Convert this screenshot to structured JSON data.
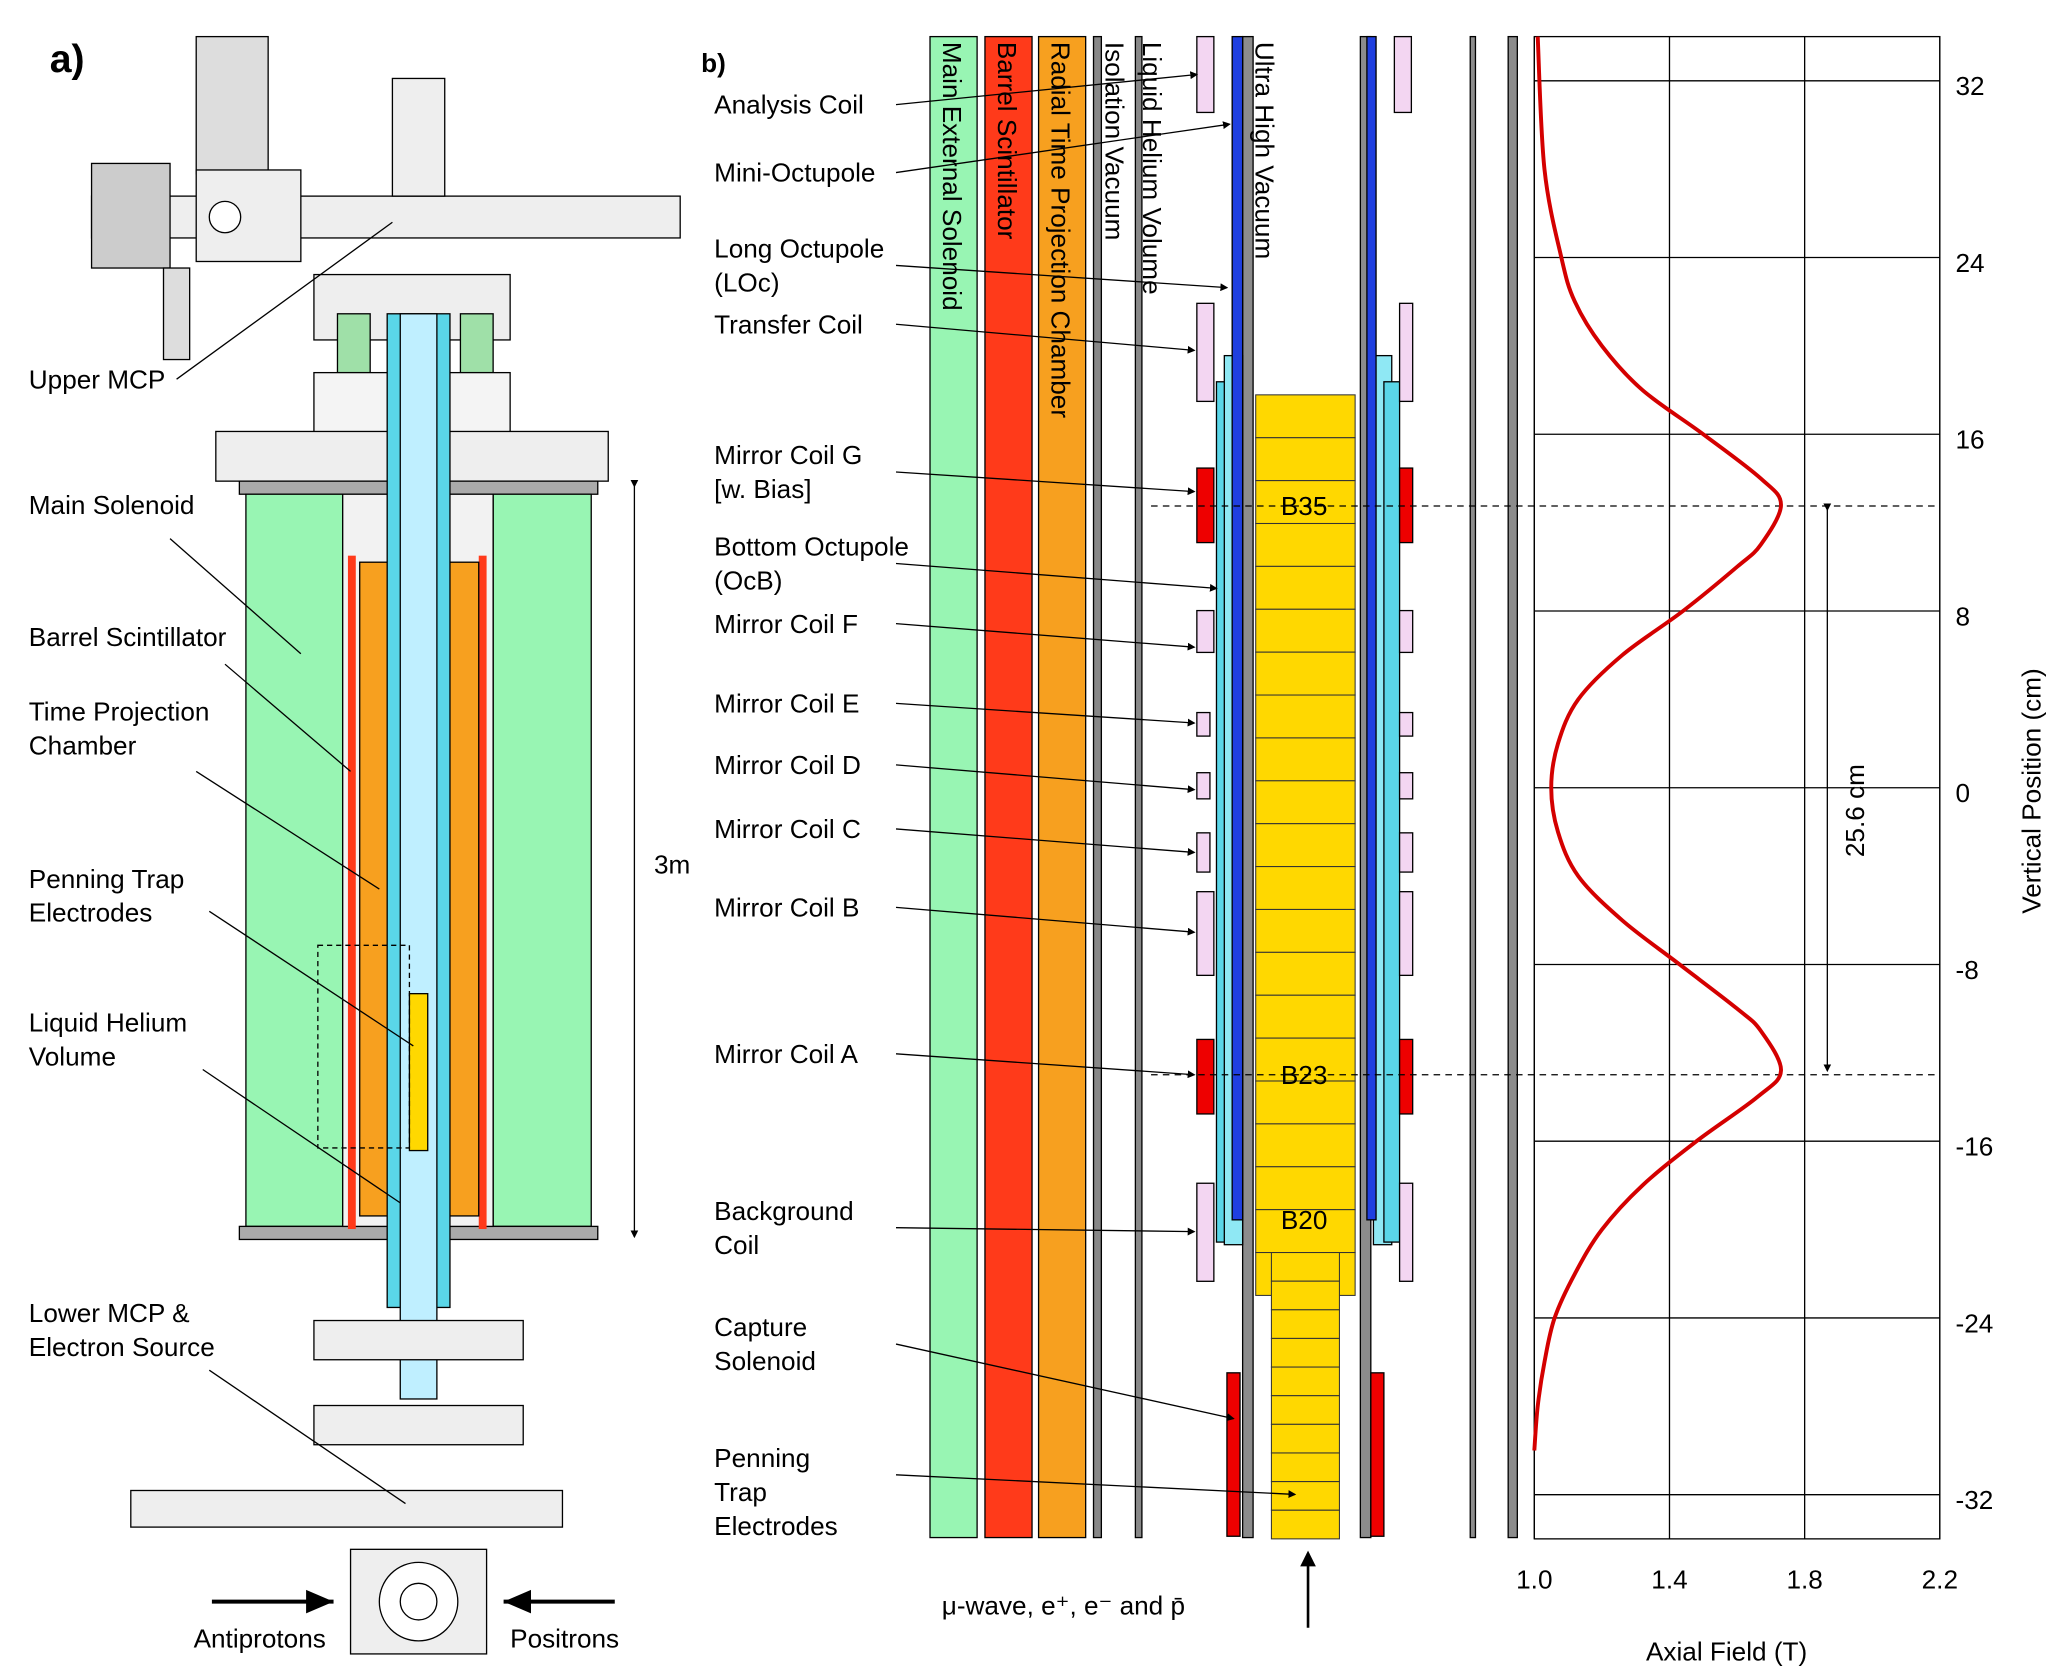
{
  "panel_a": {
    "label": "a)",
    "labels": [
      {
        "lines": [
          "Upper MCP"
        ]
      },
      {
        "lines": [
          "Main Solenoid"
        ]
      },
      {
        "lines": [
          "Barrel Scintillator"
        ]
      },
      {
        "lines": [
          "Time Projection",
          "Chamber"
        ]
      },
      {
        "lines": [
          "Penning Trap",
          "Electrodes"
        ]
      },
      {
        "lines": [
          "Liquid Helium",
          "Volume"
        ]
      },
      {
        "lines": [
          "Lower MCP &",
          "Electron Source"
        ]
      }
    ],
    "scale_label": "3m",
    "beam_labels": [
      "Antiprotons",
      "Positrons"
    ]
  },
  "panel_b": {
    "label": "b)",
    "layer_labels": [
      "Main External Solenoid",
      "Barrel Scintillator",
      "Radial Time Projection Chamber",
      "Isolation Vacuum",
      "Liquid Helium Volume",
      "Ultra High Vacuum"
    ],
    "coil_labels": [
      {
        "lines": [
          "Analysis Coil"
        ],
        "color": "#777777"
      },
      {
        "lines": [
          "Mini-Octupole"
        ],
        "color": "#777777"
      },
      {
        "lines": [
          "Long Octupole",
          "(LOc)"
        ],
        "color": "#000000"
      },
      {
        "lines": [
          "Transfer Coil"
        ],
        "color": "#777777"
      },
      {
        "lines": [
          "Mirror Coil G",
          "[w. Bias]"
        ],
        "color": "#000000"
      },
      {
        "lines": [
          "Bottom Octupole",
          "(OcB)"
        ],
        "color": "#000000"
      },
      {
        "lines": [
          "Mirror Coil F"
        ],
        "color": "#777777"
      },
      {
        "lines": [
          "Mirror Coil E"
        ],
        "color": "#777777"
      },
      {
        "lines": [
          "Mirror Coil D"
        ],
        "color": "#777777"
      },
      {
        "lines": [
          "Mirror Coil C"
        ],
        "color": "#777777"
      },
      {
        "lines": [
          "Mirror Coil B"
        ],
        "color": "#777777"
      },
      {
        "lines": [
          "Mirror Coil A"
        ],
        "color": "#000000"
      },
      {
        "lines": [
          "Background",
          "Coil"
        ],
        "color": "#777777"
      },
      {
        "lines": [
          "Capture",
          "Solenoid"
        ],
        "color": "#000000"
      },
      {
        "lines": [
          "Penning",
          "Trap",
          "Electrodes"
        ],
        "color": "#000000"
      }
    ],
    "electrode_labels": [
      "B35",
      "B23",
      "B20"
    ],
    "beam_label": "μ-wave, e⁺, e⁻ and p̄",
    "distance_label": "25.6 cm"
  },
  "chart_data": {
    "type": "line",
    "orientation": "vertical",
    "xlabel": "Axial Field (T)",
    "ylabel": "Vertical Position (cm)",
    "x": [
      -30,
      -28,
      -26,
      -24,
      -22,
      -20,
      -18,
      -16,
      -14,
      -12.8,
      -11,
      -10,
      -8,
      -6,
      -4,
      -2,
      0,
      2,
      4,
      6,
      8,
      10,
      11,
      12.8,
      14,
      16,
      18,
      20,
      22,
      24,
      28,
      34
    ],
    "series": [
      {
        "color": "#d40000",
        "values": [
          1.0,
          1.01,
          1.03,
          1.06,
          1.12,
          1.2,
          1.32,
          1.48,
          1.66,
          1.73,
          1.67,
          1.6,
          1.43,
          1.26,
          1.13,
          1.07,
          1.05,
          1.07,
          1.13,
          1.26,
          1.44,
          1.6,
          1.67,
          1.73,
          1.67,
          1.5,
          1.32,
          1.2,
          1.12,
          1.08,
          1.03,
          1.01
        ]
      }
    ],
    "xlim": [
      1.0,
      2.2
    ],
    "xticks": [
      {
        "value": 1.0,
        "label": "1.0"
      },
      1.4,
      1.8,
      2.2
    ],
    "ylim": [
      -34,
      34
    ],
    "yticks": [
      -32,
      -24,
      -16,
      -8,
      0,
      8,
      16,
      24,
      32
    ],
    "grid": true
  }
}
